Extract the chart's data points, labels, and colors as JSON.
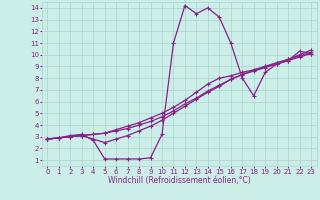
{
  "background_color": "#cceee8",
  "grid_color": "#aad4cc",
  "line_color": "#882288",
  "marker": "+",
  "markersize": 3.5,
  "linewidth": 0.9,
  "xlabel": "Windchill (Refroidissement éolien,°C)",
  "xlabel_fontsize": 5.5,
  "tick_fontsize": 5.0,
  "xlim": [
    -0.5,
    23.5
  ],
  "ylim": [
    0.5,
    14.5
  ],
  "xticks": [
    0,
    1,
    2,
    3,
    4,
    5,
    6,
    7,
    8,
    9,
    10,
    11,
    12,
    13,
    14,
    15,
    16,
    17,
    18,
    19,
    20,
    21,
    22,
    23
  ],
  "yticks": [
    1,
    2,
    3,
    4,
    5,
    6,
    7,
    8,
    9,
    10,
    11,
    12,
    13,
    14
  ],
  "series": [
    [
      2.8,
      2.9,
      3.1,
      3.2,
      2.7,
      1.1,
      1.1,
      1.1,
      1.1,
      1.2,
      3.2,
      11.0,
      14.2,
      13.5,
      14.0,
      13.2,
      11.0,
      8.0,
      6.5,
      8.5,
      9.2,
      9.5,
      10.3,
      10.1
    ],
    [
      2.8,
      2.9,
      3.0,
      3.1,
      3.2,
      3.3,
      3.5,
      3.7,
      4.0,
      4.3,
      4.7,
      5.2,
      5.8,
      6.3,
      6.9,
      7.4,
      7.9,
      8.3,
      8.6,
      8.9,
      9.2,
      9.5,
      9.8,
      10.1
    ],
    [
      2.8,
      2.9,
      3.0,
      3.1,
      3.2,
      3.3,
      3.6,
      3.9,
      4.2,
      4.6,
      5.0,
      5.5,
      6.1,
      6.8,
      7.5,
      8.0,
      8.2,
      8.5,
      8.7,
      9.0,
      9.3,
      9.6,
      10.0,
      10.4
    ],
    [
      2.8,
      2.9,
      3.0,
      3.1,
      2.8,
      2.5,
      2.8,
      3.1,
      3.5,
      3.9,
      4.4,
      5.0,
      5.6,
      6.2,
      6.8,
      7.3,
      7.9,
      8.3,
      8.7,
      9.0,
      9.3,
      9.6,
      9.9,
      10.2
    ]
  ]
}
